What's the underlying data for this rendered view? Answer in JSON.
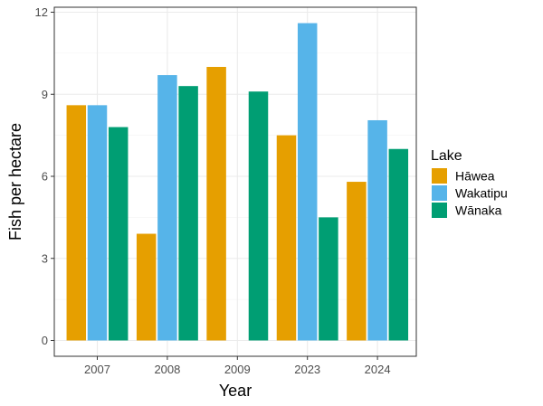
{
  "chart_data": {
    "type": "bar",
    "categories": [
      "2007",
      "2008",
      "2009",
      "2023",
      "2024"
    ],
    "series": [
      {
        "name": "Hāwea",
        "color": "#E69F00",
        "values": [
          8.6,
          3.9,
          10.0,
          7.5,
          5.8
        ]
      },
      {
        "name": "Wakatipu",
        "color": "#56B4E9",
        "values": [
          8.6,
          9.7,
          null,
          11.6,
          8.05
        ]
      },
      {
        "name": "Wānaka",
        "color": "#009E73",
        "values": [
          7.8,
          9.3,
          9.1,
          4.5,
          7.0
        ]
      }
    ],
    "xlabel": "Year",
    "ylabel": "Fish per hectare",
    "ylim": [
      0,
      12
    ],
    "yticks": [
      0,
      3,
      6,
      9,
      12
    ],
    "grid": true,
    "legend_title": "Lake",
    "legend_position": "right"
  }
}
